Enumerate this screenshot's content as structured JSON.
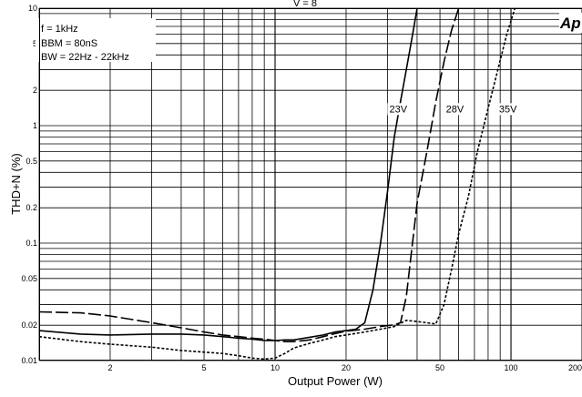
{
  "chart_data": {
    "type": "line",
    "xlabel": "Output Power (W)",
    "ylabel": "THD+N (%)",
    "x_scale": "log",
    "y_scale": "log",
    "xlim": [
      1,
      200
    ],
    "ylim": [
      0.01,
      10
    ],
    "grid": true,
    "x_tick_labels": [
      {
        "value": 2,
        "label": "2"
      },
      {
        "value": 5,
        "label": "5"
      },
      {
        "value": 10,
        "label": "10"
      },
      {
        "value": 20,
        "label": "20"
      },
      {
        "value": 50,
        "label": "50"
      },
      {
        "value": 100,
        "label": "100"
      },
      {
        "value": 200,
        "label": "200"
      }
    ],
    "y_tick_labels": [
      {
        "value": 0.01,
        "label": "0.01"
      },
      {
        "value": 0.02,
        "label": "0.02"
      },
      {
        "value": 0.05,
        "label": "0.05"
      },
      {
        "value": 0.1,
        "label": "0.1"
      },
      {
        "value": 0.2,
        "label": "0.2"
      },
      {
        "value": 0.5,
        "label": "0.5"
      },
      {
        "value": 1,
        "label": "1"
      },
      {
        "value": 2,
        "label": "2"
      },
      {
        "value": 5,
        "label": "5"
      },
      {
        "value": 10,
        "label": "10"
      }
    ],
    "conditions": [
      "f = 1kHz",
      "BBM = 80nS",
      "BW = 22Hz - 22kHz"
    ],
    "top_label": "V  = 8",
    "logo_text": "Ap",
    "series": [
      {
        "name": "23V",
        "style": "solid",
        "label_at": [
          30.5,
          1.3
        ],
        "points": [
          [
            1,
            0.018
          ],
          [
            1.5,
            0.0168
          ],
          [
            2,
            0.0165
          ],
          [
            3,
            0.0168
          ],
          [
            4,
            0.0168
          ],
          [
            5,
            0.0165
          ],
          [
            6,
            0.016
          ],
          [
            7,
            0.0155
          ],
          [
            8,
            0.0152
          ],
          [
            9,
            0.0148
          ],
          [
            10,
            0.0148
          ],
          [
            11,
            0.015
          ],
          [
            12,
            0.015
          ],
          [
            14,
            0.0158
          ],
          [
            16,
            0.0165
          ],
          [
            18,
            0.0175
          ],
          [
            20,
            0.018
          ],
          [
            22,
            0.0185
          ],
          [
            24,
            0.021
          ],
          [
            26,
            0.04
          ],
          [
            28,
            0.1
          ],
          [
            30,
            0.28
          ],
          [
            32,
            0.8
          ],
          [
            34,
            1.6
          ],
          [
            36,
            3
          ],
          [
            38,
            5.5
          ],
          [
            40,
            10
          ]
        ]
      },
      {
        "name": "28V",
        "style": "dash",
        "label_at": [
          53,
          1.3
        ],
        "points": [
          [
            1,
            0.026
          ],
          [
            1.5,
            0.0255
          ],
          [
            2,
            0.024
          ],
          [
            3,
            0.021
          ],
          [
            4,
            0.019
          ],
          [
            5,
            0.0175
          ],
          [
            6,
            0.0165
          ],
          [
            7,
            0.016
          ],
          [
            8,
            0.0155
          ],
          [
            9,
            0.0152
          ],
          [
            10,
            0.0148
          ],
          [
            11,
            0.0145
          ],
          [
            12,
            0.0145
          ],
          [
            14,
            0.015
          ],
          [
            16,
            0.016
          ],
          [
            18,
            0.017
          ],
          [
            20,
            0.0178
          ],
          [
            24,
            0.0185
          ],
          [
            28,
            0.0195
          ],
          [
            32,
            0.0202
          ],
          [
            34,
            0.021
          ],
          [
            36,
            0.035
          ],
          [
            38,
            0.09
          ],
          [
            40,
            0.22
          ],
          [
            44,
            0.6
          ],
          [
            48,
            1.6
          ],
          [
            52,
            3.5
          ],
          [
            56,
            6.5
          ],
          [
            60,
            10
          ]
        ]
      },
      {
        "name": "35V",
        "style": "dot",
        "label_at": [
          89,
          1.3
        ],
        "points": [
          [
            1,
            0.016
          ],
          [
            1.5,
            0.0145
          ],
          [
            2,
            0.0138
          ],
          [
            3,
            0.013
          ],
          [
            4,
            0.0122
          ],
          [
            5,
            0.0118
          ],
          [
            6,
            0.0115
          ],
          [
            7,
            0.011
          ],
          [
            8,
            0.0105
          ],
          [
            9,
            0.0103
          ],
          [
            10,
            0.0105
          ],
          [
            11,
            0.0115
          ],
          [
            12,
            0.0128
          ],
          [
            14,
            0.014
          ],
          [
            16,
            0.015
          ],
          [
            18,
            0.016
          ],
          [
            20,
            0.0165
          ],
          [
            24,
            0.0175
          ],
          [
            28,
            0.0185
          ],
          [
            32,
            0.0195
          ],
          [
            36,
            0.022
          ],
          [
            40,
            0.0215
          ],
          [
            44,
            0.021
          ],
          [
            48,
            0.0205
          ],
          [
            52,
            0.03
          ],
          [
            56,
            0.06
          ],
          [
            60,
            0.12
          ],
          [
            66,
            0.25
          ],
          [
            72,
            0.6
          ],
          [
            80,
            1.4
          ],
          [
            88,
            3
          ],
          [
            96,
            6
          ],
          [
            104,
            10
          ]
        ]
      }
    ]
  }
}
